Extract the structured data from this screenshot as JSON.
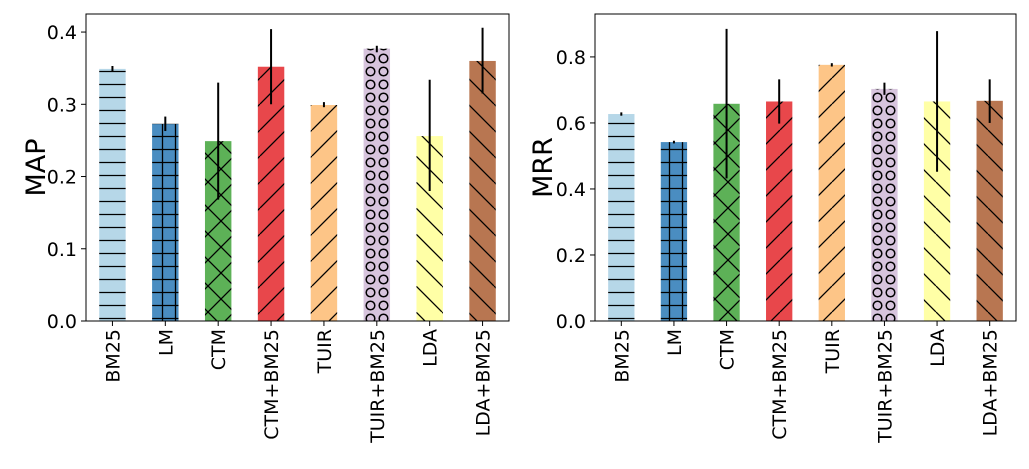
{
  "chart_data": [
    {
      "type": "bar",
      "ylabel": "MAP",
      "categories": [
        "BM25",
        "LM",
        "CTM",
        "CTM+BM25",
        "TUIR",
        "TUIR+BM25",
        "LDA",
        "LDA+BM25"
      ],
      "values": [
        0.349,
        0.273,
        0.249,
        0.352,
        0.299,
        0.377,
        0.256,
        0.36
      ],
      "error_low": [
        0.345,
        0.263,
        0.168,
        0.3,
        0.296,
        0.372,
        0.18,
        0.315
      ],
      "error_high": [
        0.353,
        0.283,
        0.33,
        0.404,
        0.303,
        0.381,
        0.334,
        0.406
      ],
      "ylim": [
        0,
        0.425
      ],
      "yticks": [
        "0.0",
        "0.1",
        "0.2",
        "0.3",
        "0.4"
      ],
      "grid": false
    },
    {
      "type": "bar",
      "ylabel": "MRR",
      "categories": [
        "BM25",
        "LM",
        "CTM",
        "CTM+BM25",
        "TUIR",
        "TUIR+BM25",
        "LDA",
        "LDA+BM25"
      ],
      "values": [
        0.627,
        0.542,
        0.658,
        0.665,
        0.776,
        0.703,
        0.665,
        0.667
      ],
      "error_low": [
        0.622,
        0.538,
        0.432,
        0.598,
        0.771,
        0.685,
        0.452,
        0.6
      ],
      "error_high": [
        0.632,
        0.546,
        0.885,
        0.732,
        0.781,
        0.722,
        0.878,
        0.732
      ],
      "ylim": [
        0,
        0.93
      ],
      "yticks": [
        "0.0",
        "0.2",
        "0.4",
        "0.6",
        "0.8"
      ],
      "grid": false
    }
  ],
  "bar_colors": [
    "#b6d7e8",
    "#4a8dc1",
    "#5db157",
    "#e8474b",
    "#fdc587",
    "#d7c4dd",
    "#ffffa6",
    "#b87651"
  ],
  "bar_hatches": [
    "horizontal",
    "grid",
    "cross",
    "forward-diagonal",
    "forward-diagonal",
    "circles",
    "back-diagonal",
    "back-diagonal"
  ]
}
